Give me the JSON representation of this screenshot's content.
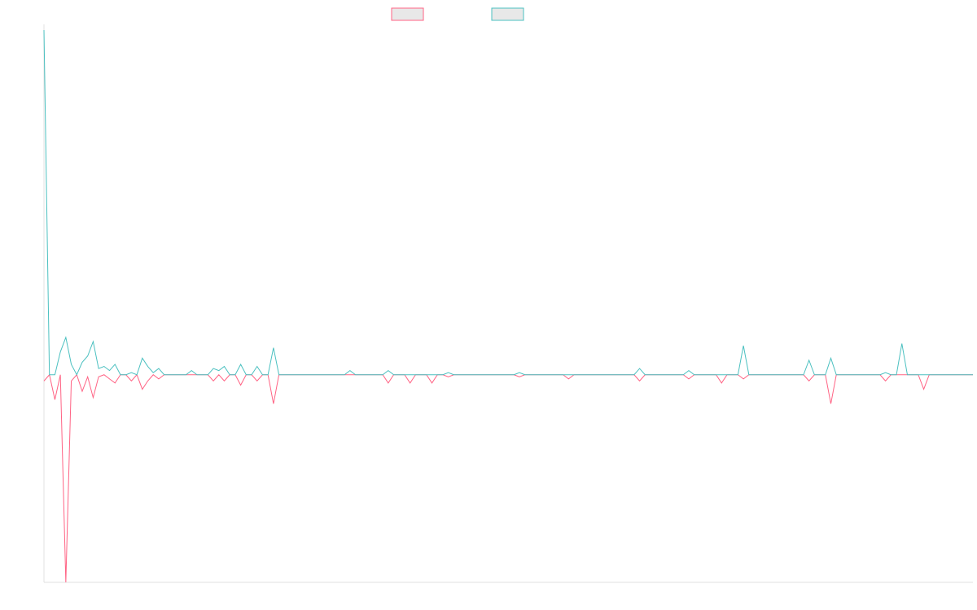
{
  "chart_data": {
    "type": "line",
    "ylim": [
      -1,
      1.66
    ],
    "series": [
      {
        "color": "#ff6384",
        "values": [
          -0.03,
          0,
          -0.12,
          0,
          -1,
          -0.03,
          0,
          -0.08,
          -0.01,
          -0.11,
          -0.01,
          0,
          -0.02,
          -0.04,
          0,
          0,
          -0.03,
          0,
          -0.07,
          -0.03,
          0,
          -0.02,
          0,
          0,
          0,
          0,
          0,
          0,
          0,
          0,
          0,
          -0.03,
          0,
          -0.03,
          0,
          0,
          -0.05,
          0,
          0,
          -0.03,
          0,
          0,
          -0.14,
          0,
          0,
          0,
          0,
          0,
          0,
          0,
          0,
          0,
          0,
          0,
          0,
          0,
          0,
          0,
          0,
          0,
          0,
          0,
          0,
          -0.04,
          0,
          0,
          0,
          -0.04,
          0,
          0,
          0,
          -0.04,
          0,
          0,
          -0.01,
          0,
          0,
          0,
          0,
          0,
          0,
          0,
          0,
          0,
          0,
          0,
          0,
          -0.01,
          0,
          0,
          0,
          0,
          0,
          0,
          0,
          0,
          -0.02,
          0,
          0,
          0,
          0,
          0,
          0,
          0,
          0,
          0,
          0,
          0,
          0,
          -0.03,
          0,
          0,
          0,
          0,
          0,
          0,
          0,
          0,
          -0.02,
          0,
          0,
          0,
          0,
          0,
          -0.04,
          0,
          0,
          0,
          -0.02,
          0,
          0,
          0,
          0,
          0,
          0,
          0,
          0,
          0,
          0,
          0,
          -0.03,
          0,
          0,
          0,
          -0.14,
          0,
          0,
          0,
          0,
          0,
          0,
          0,
          0,
          0,
          -0.03,
          0,
          0,
          0,
          0,
          0,
          0,
          -0.07,
          0,
          0,
          0,
          0,
          0,
          0,
          0,
          0,
          0
        ]
      },
      {
        "color": "#4bc0c0",
        "values": [
          1.66,
          0,
          0,
          0.11,
          0.18,
          0.05,
          0,
          0.06,
          0.09,
          0.16,
          0.03,
          0.04,
          0.02,
          0.05,
          0,
          0,
          0.01,
          0,
          0.08,
          0.04,
          0.01,
          0.03,
          0,
          0,
          0,
          0,
          0,
          0.02,
          0,
          0,
          0,
          0.03,
          0.02,
          0.04,
          0,
          0,
          0.05,
          0,
          0,
          0.04,
          0,
          0,
          0.13,
          0,
          0,
          0,
          0,
          0,
          0,
          0,
          0,
          0,
          0,
          0,
          0,
          0,
          0.02,
          0,
          0,
          0,
          0,
          0,
          0,
          0.02,
          0,
          0,
          0,
          0,
          0,
          0,
          0,
          0,
          0,
          0,
          0.01,
          0,
          0,
          0,
          0,
          0,
          0,
          0,
          0,
          0,
          0,
          0,
          0,
          0.01,
          0,
          0,
          0,
          0,
          0,
          0,
          0,
          0,
          0,
          0,
          0,
          0,
          0,
          0,
          0,
          0,
          0,
          0,
          0,
          0,
          0,
          0.03,
          0,
          0,
          0,
          0,
          0,
          0,
          0,
          0,
          0.02,
          0,
          0,
          0,
          0,
          0,
          0,
          0,
          0,
          0,
          0.14,
          0,
          0,
          0,
          0,
          0,
          0,
          0,
          0,
          0,
          0,
          0,
          0.07,
          0,
          0,
          0,
          0.08,
          0,
          0,
          0,
          0,
          0,
          0,
          0,
          0,
          0,
          0.01,
          0,
          0,
          0.15,
          0,
          0,
          0,
          0,
          0,
          0,
          0,
          0,
          0,
          0,
          0,
          0,
          0
        ]
      }
    ]
  }
}
